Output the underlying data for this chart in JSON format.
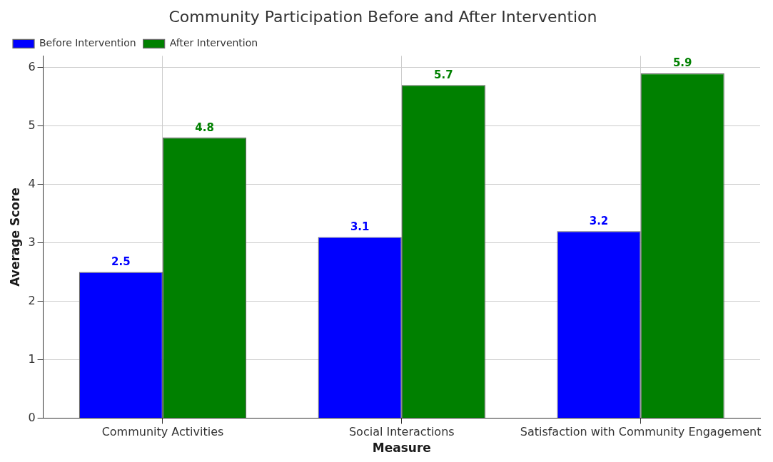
{
  "chart_data": {
    "type": "bar",
    "title": "Community Participation Before and After Intervention",
    "xlabel": "Measure",
    "ylabel": "Average Score",
    "categories": [
      "Community Activities",
      "Social Interactions",
      "Satisfaction with Community Engagement"
    ],
    "series": [
      {
        "name": "Before Intervention",
        "color": "#0000ff",
        "values": [
          2.5,
          3.1,
          3.2
        ]
      },
      {
        "name": "After Intervention",
        "color": "#008000",
        "values": [
          4.8,
          5.7,
          5.9
        ]
      }
    ],
    "ylim": [
      0,
      6.2
    ],
    "yticks": [
      0,
      1,
      2,
      3,
      4,
      5,
      6
    ],
    "grid": true,
    "legend": "top left",
    "data_labels": true
  }
}
